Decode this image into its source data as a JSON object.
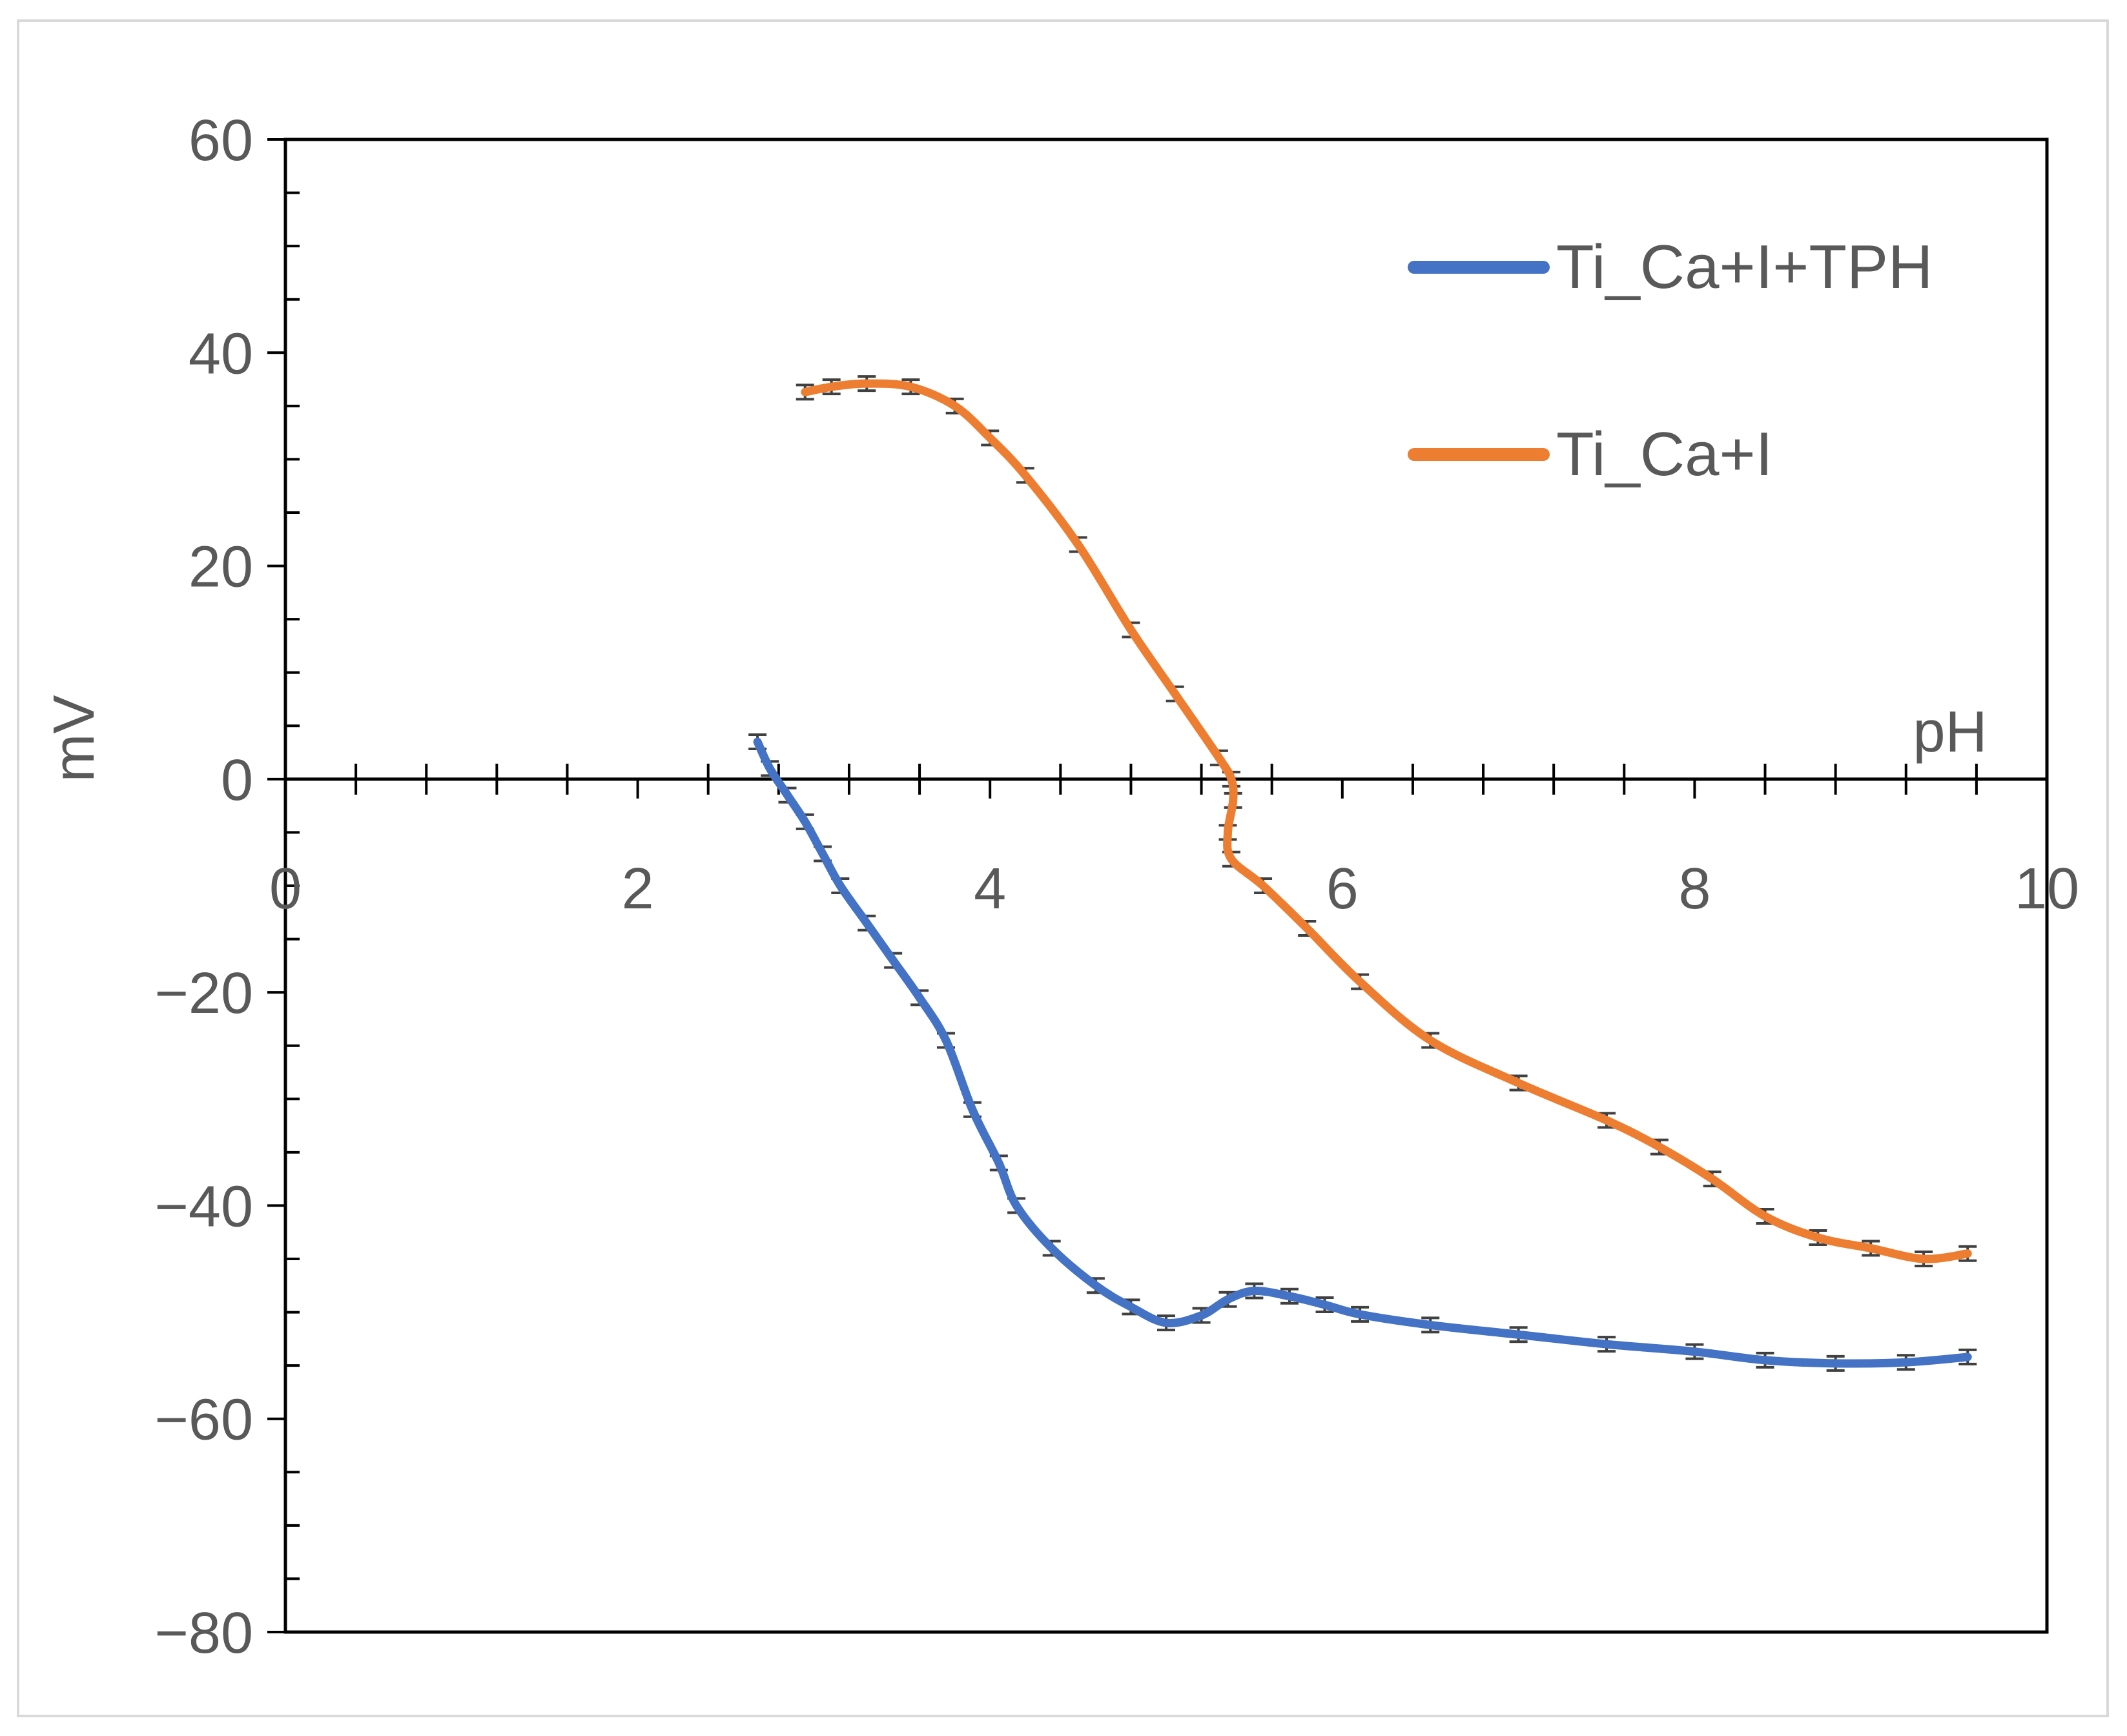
{
  "chart_data": {
    "type": "line",
    "xlabel": "pH",
    "ylabel": "mV",
    "xlim": [
      0,
      10
    ],
    "ylim": [
      -80,
      60
    ],
    "x_ticks": [
      0,
      2,
      4,
      6,
      8,
      10
    ],
    "y_ticks": [
      60,
      40,
      20,
      0,
      -20,
      -40,
      -60,
      -80
    ],
    "grid": false,
    "legend_position": "top-right",
    "series": [
      {
        "name": "Ti_Ca+I+TPH",
        "color": "#4472C4",
        "error_bars": true,
        "points": [
          [
            2.68,
            3.5
          ],
          [
            2.75,
            1
          ],
          [
            2.85,
            -1.5
          ],
          [
            2.95,
            -4
          ],
          [
            3.05,
            -7
          ],
          [
            3.15,
            -10
          ],
          [
            3.3,
            -13.5
          ],
          [
            3.45,
            -17
          ],
          [
            3.6,
            -20.5
          ],
          [
            3.75,
            -24.5
          ],
          [
            3.9,
            -31
          ],
          [
            4.05,
            -36
          ],
          [
            4.15,
            -40
          ],
          [
            4.35,
            -44
          ],
          [
            4.6,
            -47.5
          ],
          [
            4.8,
            -49.5
          ],
          [
            5.0,
            -51
          ],
          [
            5.2,
            -50.3
          ],
          [
            5.35,
            -48.8
          ],
          [
            5.5,
            -48
          ],
          [
            5.7,
            -48.5
          ],
          [
            5.9,
            -49.3
          ],
          [
            6.1,
            -50.2
          ],
          [
            6.5,
            -51.2
          ],
          [
            7.0,
            -52.1
          ],
          [
            7.5,
            -53
          ],
          [
            8.0,
            -53.7
          ],
          [
            8.4,
            -54.5
          ],
          [
            8.8,
            -54.8
          ],
          [
            9.2,
            -54.7
          ],
          [
            9.55,
            -54.2
          ]
        ]
      },
      {
        "name": "Ti_Ca+I",
        "color": "#ED7D31",
        "error_bars": true,
        "points": [
          [
            2.95,
            36.3
          ],
          [
            3.1,
            36.8
          ],
          [
            3.3,
            37.1
          ],
          [
            3.55,
            36.8
          ],
          [
            3.8,
            35
          ],
          [
            4.0,
            32
          ],
          [
            4.2,
            28.5
          ],
          [
            4.5,
            22
          ],
          [
            4.8,
            14
          ],
          [
            5.05,
            8
          ],
          [
            5.3,
            2
          ],
          [
            5.37,
            0
          ],
          [
            5.38,
            -2
          ],
          [
            5.35,
            -5
          ],
          [
            5.37,
            -7.5
          ],
          [
            5.55,
            -10
          ],
          [
            5.8,
            -14
          ],
          [
            6.1,
            -19
          ],
          [
            6.5,
            -24.5
          ],
          [
            7.0,
            -28.5
          ],
          [
            7.5,
            -32
          ],
          [
            7.8,
            -34.5
          ],
          [
            8.1,
            -37.5
          ],
          [
            8.4,
            -41
          ],
          [
            8.7,
            -43
          ],
          [
            9.0,
            -44
          ],
          [
            9.3,
            -45
          ],
          [
            9.55,
            -44.5
          ]
        ]
      }
    ]
  }
}
